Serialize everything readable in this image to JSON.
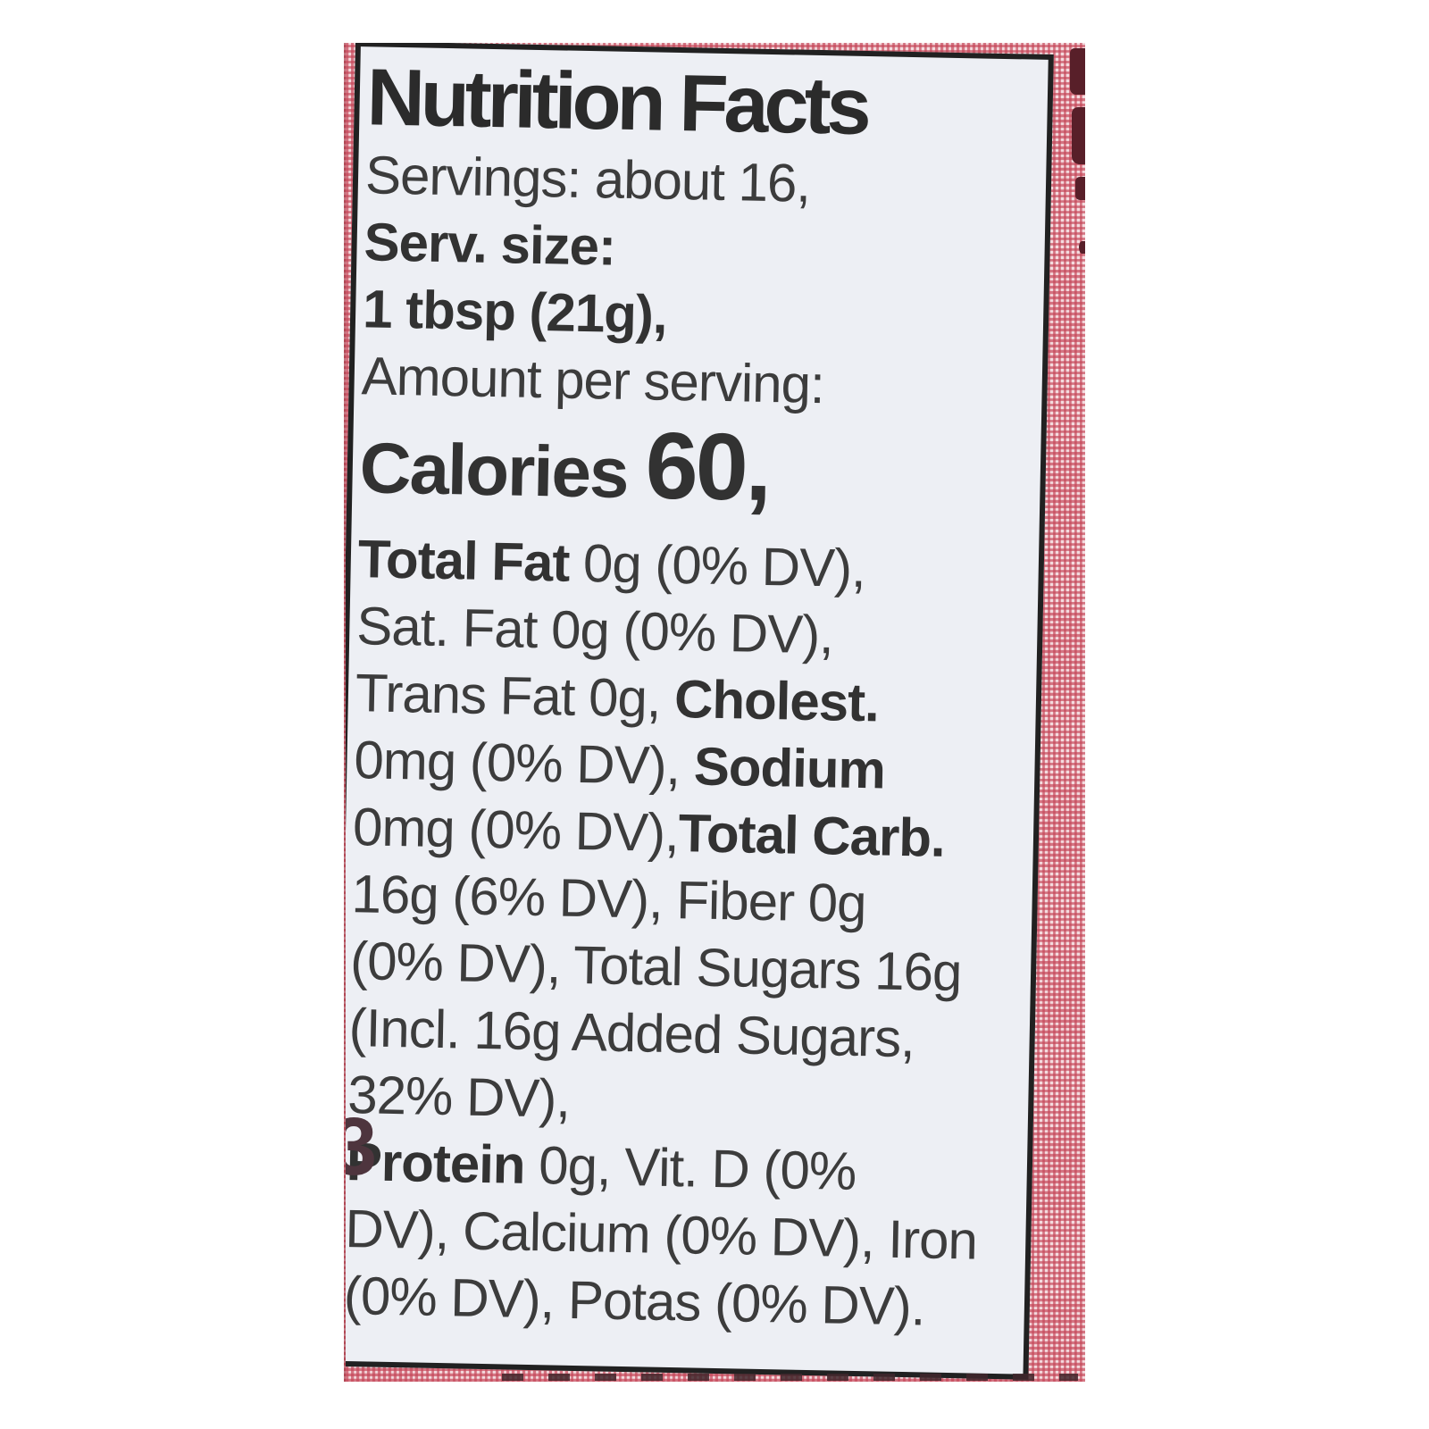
{
  "label": {
    "title": "Nutrition Facts",
    "lines": [
      {
        "segments": [
          {
            "text": "Servings: about 16,",
            "bold": false
          }
        ]
      },
      {
        "segments": [
          {
            "text": "Serv. size:",
            "bold": true
          }
        ]
      },
      {
        "segments": [
          {
            "text": "1 tbsp (21g),",
            "bold": true
          }
        ]
      },
      {
        "segments": [
          {
            "text": "Amount per serving:",
            "bold": false
          }
        ]
      },
      {
        "calories": true,
        "segments": [
          {
            "text": "Calories ",
            "bold": true,
            "size": "lg"
          },
          {
            "text": "60,",
            "bold": true,
            "size": "xl"
          }
        ]
      },
      {
        "segments": [
          {
            "text": "Total Fat ",
            "bold": true
          },
          {
            "text": "0g (0% DV),",
            "bold": false
          }
        ]
      },
      {
        "segments": [
          {
            "text": "Sat. Fat 0g (0% DV),",
            "bold": false
          }
        ]
      },
      {
        "segments": [
          {
            "text": "Trans Fat 0g, ",
            "bold": false
          },
          {
            "text": "Cholest.",
            "bold": true
          }
        ]
      },
      {
        "segments": [
          {
            "text": "0mg (0% DV), ",
            "bold": false
          },
          {
            "text": "Sodium",
            "bold": true
          }
        ]
      },
      {
        "segments": [
          {
            "text": "0mg (0% DV),",
            "bold": false
          },
          {
            "text": "Total Carb.",
            "bold": true
          }
        ]
      },
      {
        "segments": [
          {
            "text": "16g (6% DV), Fiber 0g",
            "bold": false
          }
        ]
      },
      {
        "segments": [
          {
            "text": "(0% DV), Total Sugars 16g",
            "bold": false
          }
        ]
      },
      {
        "segments": [
          {
            "text": "(Incl. 16g Added Sugars,",
            "bold": false
          }
        ]
      },
      {
        "segments": [
          {
            "text": "32% DV),",
            "bold": false
          }
        ]
      },
      {
        "segments": [
          {
            "text": "Protein ",
            "bold": true
          },
          {
            "text": "0g, Vit. D (0%",
            "bold": false
          }
        ]
      },
      {
        "segments": [
          {
            "text": "DV), Calcium (0% DV), Iron",
            "bold": false
          }
        ]
      },
      {
        "segments": [
          {
            "text": "(0% DV), Potas (0% DV).",
            "bold": false
          }
        ]
      }
    ]
  },
  "artifacts": {
    "left_cutoff_glyph": "3"
  },
  "colors": {
    "gingham_pink": "#c54658",
    "label_background": "#edeff4",
    "label_border": "#212121",
    "body_text": "#3c3c3c",
    "title_text": "#2b2b2b",
    "artifact_dark_red": "#581f29"
  }
}
